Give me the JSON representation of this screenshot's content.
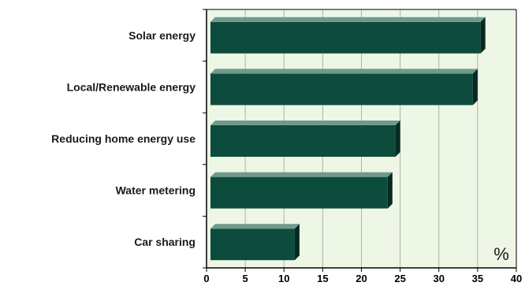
{
  "chart_data": {
    "type": "bar",
    "orientation": "horizontal",
    "categories": [
      "Solar energy",
      "Local/Renewable energy",
      "Reducing home energy use",
      "Water metering",
      "Car sharing"
    ],
    "values": [
      36,
      35,
      25,
      24,
      12
    ],
    "title": "",
    "xlabel": "",
    "ylabel": "",
    "unit_label": "%",
    "xlim": [
      0,
      40
    ],
    "xticks": [
      0,
      5,
      10,
      15,
      20,
      25,
      30,
      35,
      40
    ],
    "grid": true,
    "legend": "none",
    "colors": {
      "bar": "#0d4c3c",
      "bar_top": "#6f9a8c",
      "bar_shadow": "#062a21",
      "plot_bg": "#eef6e6",
      "grid": "#a9b5a3",
      "axis": "#000000"
    }
  }
}
